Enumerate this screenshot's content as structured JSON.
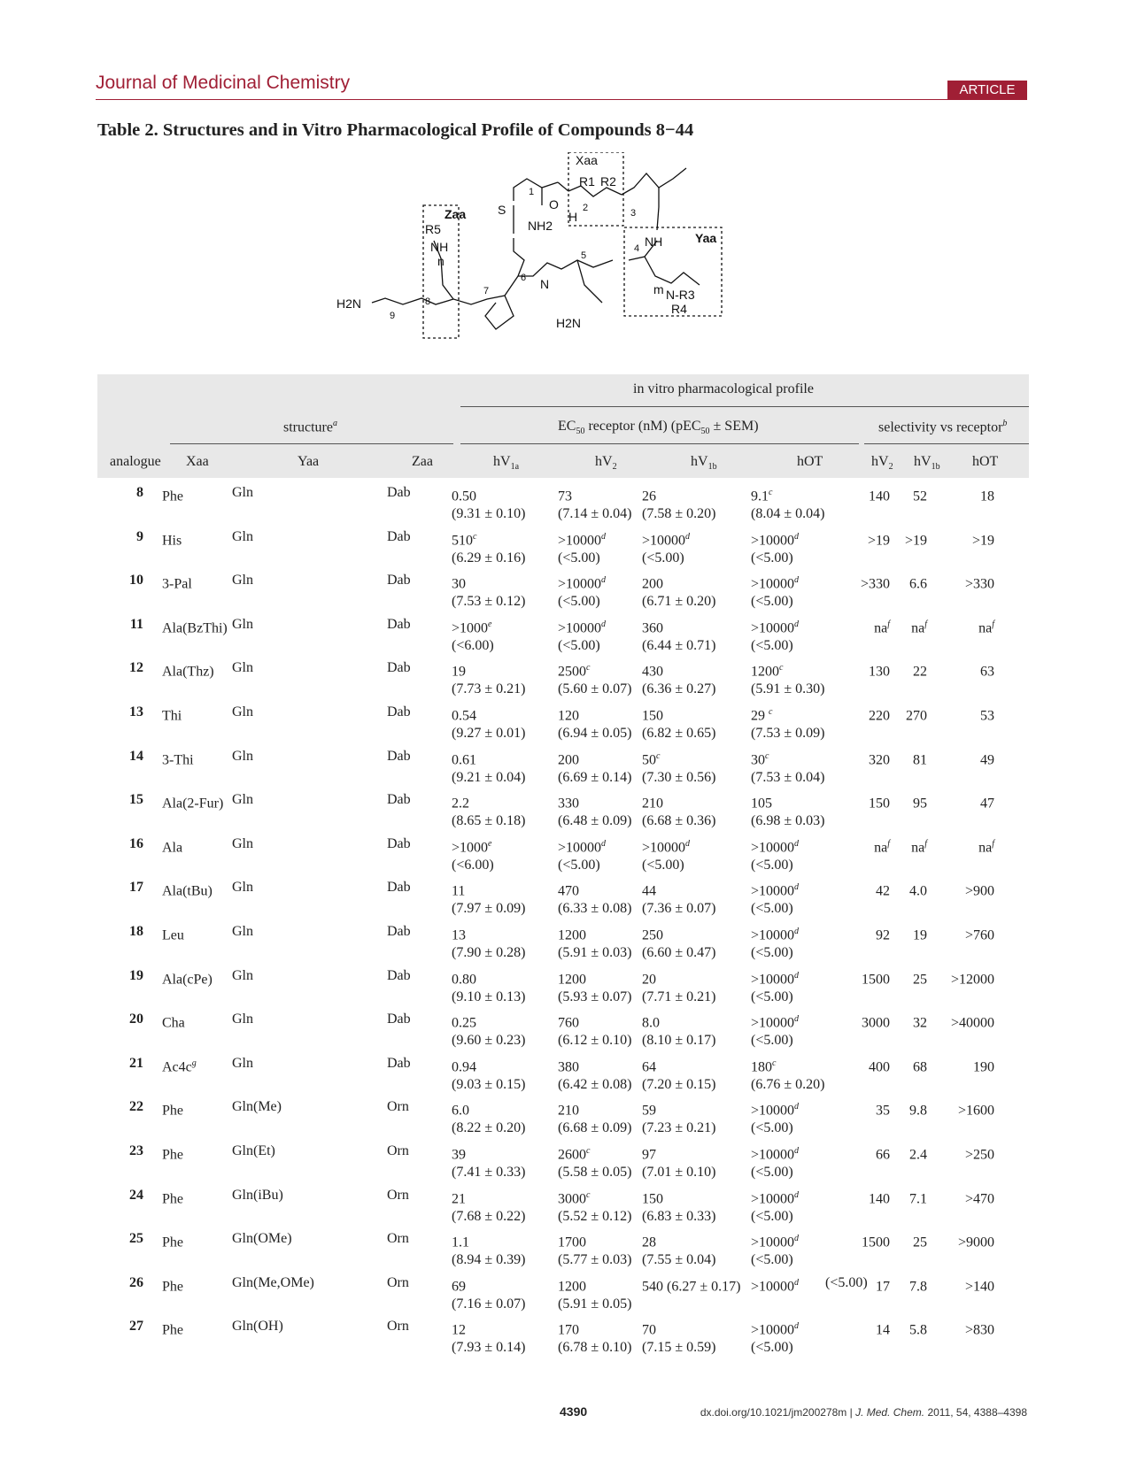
{
  "journal": "Journal of Medicinal Chemistry",
  "badge": "ARTICLE",
  "caption": "Table 2.  Structures and in Vitro Pharmacological Profile of Compounds 8−44",
  "structure_labels": {
    "xaa": "Xaa",
    "yaa": "Yaa",
    "zaa": "Zaa",
    "r1": "R1",
    "r2": "R2",
    "r3": "N-R3",
    "r4": "R4",
    "r5": "R5",
    "nh2a": "NH2",
    "nh2b": "H2N",
    "nh2c": "H2N",
    "nh": "NH",
    "nh2": "NH",
    "h": "H",
    "hn": "H",
    "n": "N",
    "o": "O",
    "s": "S",
    "idx_n": "n",
    "idx_m": "m",
    "pos": [
      "1",
      "2",
      "3",
      "4",
      "5",
      "6",
      "7",
      "8",
      "9"
    ]
  },
  "header": {
    "profile": "in vitro pharmacological profile",
    "structure": "structure",
    "structure_note": "a",
    "ec50_pre": "EC",
    "ec50_sub": "50",
    "ec50_post": " receptor (nM) (pEC",
    "ec50_sub2": "50",
    "ec50_end": " ± SEM)",
    "selectivity": "selectivity vs receptor",
    "selectivity_note": "b",
    "cols": [
      "analogue",
      "Xaa",
      "Yaa",
      "Zaa"
    ],
    "receptors": [
      {
        "base": "hV",
        "sub": "1a"
      },
      {
        "base": "hV",
        "sub": "2"
      },
      {
        "base": "hV",
        "sub": "1b"
      },
      {
        "base": "hOT",
        "sub": ""
      }
    ],
    "sel": [
      {
        "base": "hV",
        "sub": "2"
      },
      {
        "base": "hV",
        "sub": "1b"
      },
      {
        "base": "hOT",
        "sub": ""
      }
    ]
  },
  "rows": [
    {
      "id": "8",
      "xaa": "Phe",
      "xs": "",
      "yaa": "Gln",
      "zaa": "Dab",
      "v": [
        [
          "0.50",
          ""
        ],
        [
          "73",
          ""
        ],
        [
          "26",
          ""
        ],
        [
          "9.1",
          "c"
        ]
      ],
      "p": [
        "(9.31 ± 0.10)",
        "(7.14 ± 0.04)",
        "(7.58 ± 0.20)",
        "(8.04 ± 0.04)"
      ],
      "s": [
        [
          "140",
          ""
        ],
        [
          "52",
          ""
        ],
        [
          "18",
          ""
        ]
      ]
    },
    {
      "id": "9",
      "xaa": "His",
      "xs": "",
      "yaa": "Gln",
      "zaa": "Dab",
      "v": [
        [
          "510",
          "c"
        ],
        [
          ">10000",
          "d"
        ],
        [
          ">10000",
          "d"
        ],
        [
          ">10000",
          "d"
        ]
      ],
      "p": [
        "(6.29 ± 0.16)",
        "(<5.00)",
        "(<5.00)",
        "(<5.00)"
      ],
      "s": [
        [
          ">19",
          ""
        ],
        [
          ">19",
          ""
        ],
        [
          ">19",
          ""
        ]
      ]
    },
    {
      "id": "10",
      "xaa": "3-Pal",
      "xs": "",
      "yaa": "Gln",
      "zaa": "Dab",
      "v": [
        [
          "30",
          ""
        ],
        [
          ">10000",
          "d"
        ],
        [
          "200",
          ""
        ],
        [
          ">10000",
          "d"
        ]
      ],
      "p": [
        "(7.53 ± 0.12)",
        "(<5.00)",
        "(6.71 ± 0.20)",
        "(<5.00)"
      ],
      "s": [
        [
          ">330",
          ""
        ],
        [
          "6.6",
          ""
        ],
        [
          ">330",
          ""
        ]
      ]
    },
    {
      "id": "11",
      "xaa": "Ala(BzThi)",
      "xs": "",
      "yaa": "Gln",
      "zaa": "Dab",
      "v": [
        [
          ">1000",
          "e"
        ],
        [
          ">10000",
          "d"
        ],
        [
          "360",
          ""
        ],
        [
          ">10000",
          "d"
        ]
      ],
      "p": [
        "(<6.00)",
        "(<5.00)",
        "(6.44 ± 0.71)",
        "(<5.00)"
      ],
      "s": [
        [
          "na",
          "f"
        ],
        [
          "na",
          "f"
        ],
        [
          "na",
          "f"
        ]
      ]
    },
    {
      "id": "12",
      "xaa": "Ala(Thz)",
      "xs": "",
      "yaa": "Gln",
      "zaa": "Dab",
      "v": [
        [
          "19",
          ""
        ],
        [
          "2500",
          "c"
        ],
        [
          "430",
          ""
        ],
        [
          "1200",
          "c"
        ]
      ],
      "p": [
        "(7.73 ± 0.21)",
        "(5.60 ± 0.07)",
        "(6.36 ± 0.27)",
        "(5.91 ± 0.30)"
      ],
      "s": [
        [
          "130",
          ""
        ],
        [
          "22",
          ""
        ],
        [
          "63",
          ""
        ]
      ]
    },
    {
      "id": "13",
      "xaa": "Thi",
      "xs": "",
      "yaa": "Gln",
      "zaa": "Dab",
      "v": [
        [
          "0.54",
          ""
        ],
        [
          "120",
          ""
        ],
        [
          "150",
          ""
        ],
        [
          "29 ",
          "c"
        ]
      ],
      "p": [
        "(9.27 ± 0.01)",
        "(6.94 ± 0.05)",
        "(6.82 ± 0.65)",
        "(7.53 ± 0.09)"
      ],
      "s": [
        [
          "220",
          ""
        ],
        [
          "270",
          ""
        ],
        [
          "53",
          ""
        ]
      ]
    },
    {
      "id": "14",
      "xaa": "3-Thi",
      "xs": "",
      "yaa": "Gln",
      "zaa": "Dab",
      "v": [
        [
          "0.61",
          ""
        ],
        [
          "200",
          ""
        ],
        [
          "50",
          "c"
        ],
        [
          "30",
          "c"
        ]
      ],
      "p": [
        "(9.21 ± 0.04)",
        "(6.69 ± 0.14)",
        "(7.30 ± 0.56)",
        "(7.53 ± 0.04)"
      ],
      "s": [
        [
          "320",
          ""
        ],
        [
          "81",
          ""
        ],
        [
          "49",
          ""
        ]
      ]
    },
    {
      "id": "15",
      "xaa": "Ala(2-Fur)",
      "xs": "",
      "yaa": "Gln",
      "zaa": "Dab",
      "v": [
        [
          "2.2",
          ""
        ],
        [
          "330",
          ""
        ],
        [
          "210",
          ""
        ],
        [
          "105",
          ""
        ]
      ],
      "p": [
        "(8.65 ± 0.18)",
        "(6.48 ± 0.09)",
        "(6.68 ± 0.36)",
        "(6.98 ± 0.03)"
      ],
      "s": [
        [
          "150",
          ""
        ],
        [
          "95",
          ""
        ],
        [
          "47",
          ""
        ]
      ]
    },
    {
      "id": "16",
      "xaa": "Ala",
      "xs": "",
      "yaa": "Gln",
      "zaa": "Dab",
      "v": [
        [
          ">1000",
          "e"
        ],
        [
          ">10000",
          "d"
        ],
        [
          ">10000",
          "d"
        ],
        [
          ">10000",
          "d"
        ]
      ],
      "p": [
        "(<6.00)",
        "(<5.00)",
        "(<5.00)",
        "(<5.00)"
      ],
      "s": [
        [
          "na",
          "f"
        ],
        [
          "na",
          "f"
        ],
        [
          "na",
          "f"
        ]
      ]
    },
    {
      "id": "17",
      "xaa": "Ala(tBu)",
      "xs": "",
      "yaa": "Gln",
      "zaa": "Dab",
      "v": [
        [
          "11",
          ""
        ],
        [
          "470",
          ""
        ],
        [
          "44",
          ""
        ],
        [
          ">10000",
          "d"
        ]
      ],
      "p": [
        "(7.97 ± 0.09)",
        "(6.33 ± 0.08)",
        "(7.36 ± 0.07)",
        "(<5.00)"
      ],
      "s": [
        [
          "42",
          ""
        ],
        [
          "4.0",
          ""
        ],
        [
          ">900",
          ""
        ]
      ]
    },
    {
      "id": "18",
      "xaa": "Leu",
      "xs": "",
      "yaa": "Gln",
      "zaa": "Dab",
      "v": [
        [
          "13",
          ""
        ],
        [
          "1200",
          ""
        ],
        [
          "250",
          ""
        ],
        [
          ">10000",
          "d"
        ]
      ],
      "p": [
        "(7.90 ± 0.28)",
        "(5.91 ± 0.03)",
        "(6.60 ± 0.47)",
        " (<5.00)"
      ],
      "s": [
        [
          "92",
          ""
        ],
        [
          "19",
          ""
        ],
        [
          ">760",
          ""
        ]
      ]
    },
    {
      "id": "19",
      "xaa": "Ala(cPe)",
      "xs": "",
      "yaa": "Gln",
      "zaa": "Dab",
      "v": [
        [
          "0.80",
          ""
        ],
        [
          "1200",
          ""
        ],
        [
          "20",
          ""
        ],
        [
          ">10000",
          "d"
        ]
      ],
      "p": [
        "(9.10 ± 0.13)",
        "(5.93 ± 0.07)",
        "(7.71 ± 0.21)",
        "(<5.00)"
      ],
      "s": [
        [
          "1500",
          ""
        ],
        [
          "25",
          ""
        ],
        [
          ">12000",
          ""
        ]
      ]
    },
    {
      "id": "20",
      "xaa": "Cha",
      "xs": "",
      "yaa": "Gln",
      "zaa": "Dab",
      "v": [
        [
          "0.25",
          ""
        ],
        [
          "760",
          ""
        ],
        [
          "8.0",
          ""
        ],
        [
          ">10000",
          "d"
        ]
      ],
      "p": [
        "(9.60 ± 0.23)",
        "(6.12 ± 0.10)",
        "(8.10 ± 0.17)",
        "(<5.00)"
      ],
      "s": [
        [
          "3000",
          ""
        ],
        [
          "32",
          ""
        ],
        [
          ">40000",
          ""
        ]
      ]
    },
    {
      "id": "21",
      "xaa": "Ac4c",
      "xs": "g",
      "yaa": "Gln",
      "zaa": "Dab",
      "v": [
        [
          "0.94",
          ""
        ],
        [
          "380",
          ""
        ],
        [
          "64",
          ""
        ],
        [
          "180",
          "c"
        ]
      ],
      "p": [
        "(9.03 ± 0.15)",
        "(6.42 ± 0.08)",
        "(7.20 ± 0.15)",
        "(6.76 ± 0.20)"
      ],
      "s": [
        [
          "400",
          ""
        ],
        [
          "68",
          ""
        ],
        [
          "190",
          ""
        ]
      ]
    },
    {
      "id": "22",
      "xaa": "Phe",
      "xs": "",
      "yaa": "Gln(Me)",
      "zaa": "Orn",
      "v": [
        [
          "6.0",
          ""
        ],
        [
          "210",
          ""
        ],
        [
          "59",
          ""
        ],
        [
          ">10000",
          "d"
        ]
      ],
      "p": [
        "(8.22 ± 0.20)",
        "(6.68 ± 0.09)",
        "(7.23 ± 0.21)",
        "(<5.00)"
      ],
      "s": [
        [
          "35",
          ""
        ],
        [
          "9.8",
          ""
        ],
        [
          ">1600",
          ""
        ]
      ]
    },
    {
      "id": "23",
      "xaa": "Phe",
      "xs": "",
      "yaa": "Gln(Et)",
      "zaa": "Orn",
      "v": [
        [
          "39",
          ""
        ],
        [
          "2600",
          "c"
        ],
        [
          "97",
          ""
        ],
        [
          ">10000",
          "d"
        ]
      ],
      "p": [
        "(7.41 ± 0.33)",
        "(5.58 ± 0.05)",
        "(7.01 ± 0.10)",
        "(<5.00)"
      ],
      "s": [
        [
          "66",
          ""
        ],
        [
          "2.4",
          ""
        ],
        [
          ">250",
          ""
        ]
      ]
    },
    {
      "id": "24",
      "xaa": "Phe",
      "xs": "",
      "yaa": "Gln(iBu)",
      "zaa": "Orn",
      "v": [
        [
          "21",
          ""
        ],
        [
          "3000",
          "c"
        ],
        [
          "150",
          ""
        ],
        [
          ">10000",
          "d"
        ]
      ],
      "p": [
        "(7.68 ± 0.22)",
        "(5.52 ± 0.12)",
        "(6.83 ± 0.33)",
        "(<5.00)"
      ],
      "s": [
        [
          "140",
          ""
        ],
        [
          "7.1",
          ""
        ],
        [
          ">470",
          ""
        ]
      ]
    },
    {
      "id": "25",
      "xaa": "Phe",
      "xs": "",
      "yaa": "Gln(OMe)",
      "zaa": "Orn",
      "v": [
        [
          "1.1",
          ""
        ],
        [
          "1700",
          ""
        ],
        [
          "28",
          ""
        ],
        [
          ">10000",
          "d"
        ]
      ],
      "p": [
        "(8.94 ± 0.39)",
        "(5.77 ± 0.03)",
        "(7.55 ± 0.04)",
        "(<5.00)"
      ],
      "s": [
        [
          "1500",
          ""
        ],
        [
          "25",
          ""
        ],
        [
          ">9000",
          ""
        ]
      ]
    },
    {
      "id": "26",
      "xaa": "Phe",
      "xs": "",
      "yaa": "Gln(Me,OMe)",
      "zaa": "Orn",
      "v": [
        [
          "69",
          ""
        ],
        [
          "1200",
          ""
        ],
        [
          "540 (6.27 ± 0.17)",
          ""
        ],
        [
          ">10000",
          "d"
        ]
      ],
      "vx": " (<5.00)",
      "p": [
        "(7.16 ± 0.07)",
        "(5.91 ± 0.05)",
        "",
        ""
      ],
      "s": [
        [
          "17",
          ""
        ],
        [
          "7.8",
          ""
        ],
        [
          ">140",
          ""
        ]
      ]
    },
    {
      "id": "27",
      "xaa": "Phe",
      "xs": "",
      "yaa": "Gln(OH)",
      "zaa": "Orn",
      "v": [
        [
          "12",
          ""
        ],
        [
          "170",
          ""
        ],
        [
          "70",
          ""
        ],
        [
          ">10000",
          "d"
        ]
      ],
      "p": [
        "(7.93 ± 0.14)",
        "(6.78 ± 0.10)",
        "(7.15 ± 0.59)",
        "(<5.00)"
      ],
      "s": [
        [
          "14",
          ""
        ],
        [
          "5.8",
          ""
        ],
        [
          ">830",
          ""
        ]
      ]
    }
  ],
  "page_number": "4390",
  "doi_pre": "dx.doi.org/10.1021/jm200278m |",
  "doi_journal": "J. Med. Chem.",
  "doi_post": " 2011, 54, 4388–4398"
}
